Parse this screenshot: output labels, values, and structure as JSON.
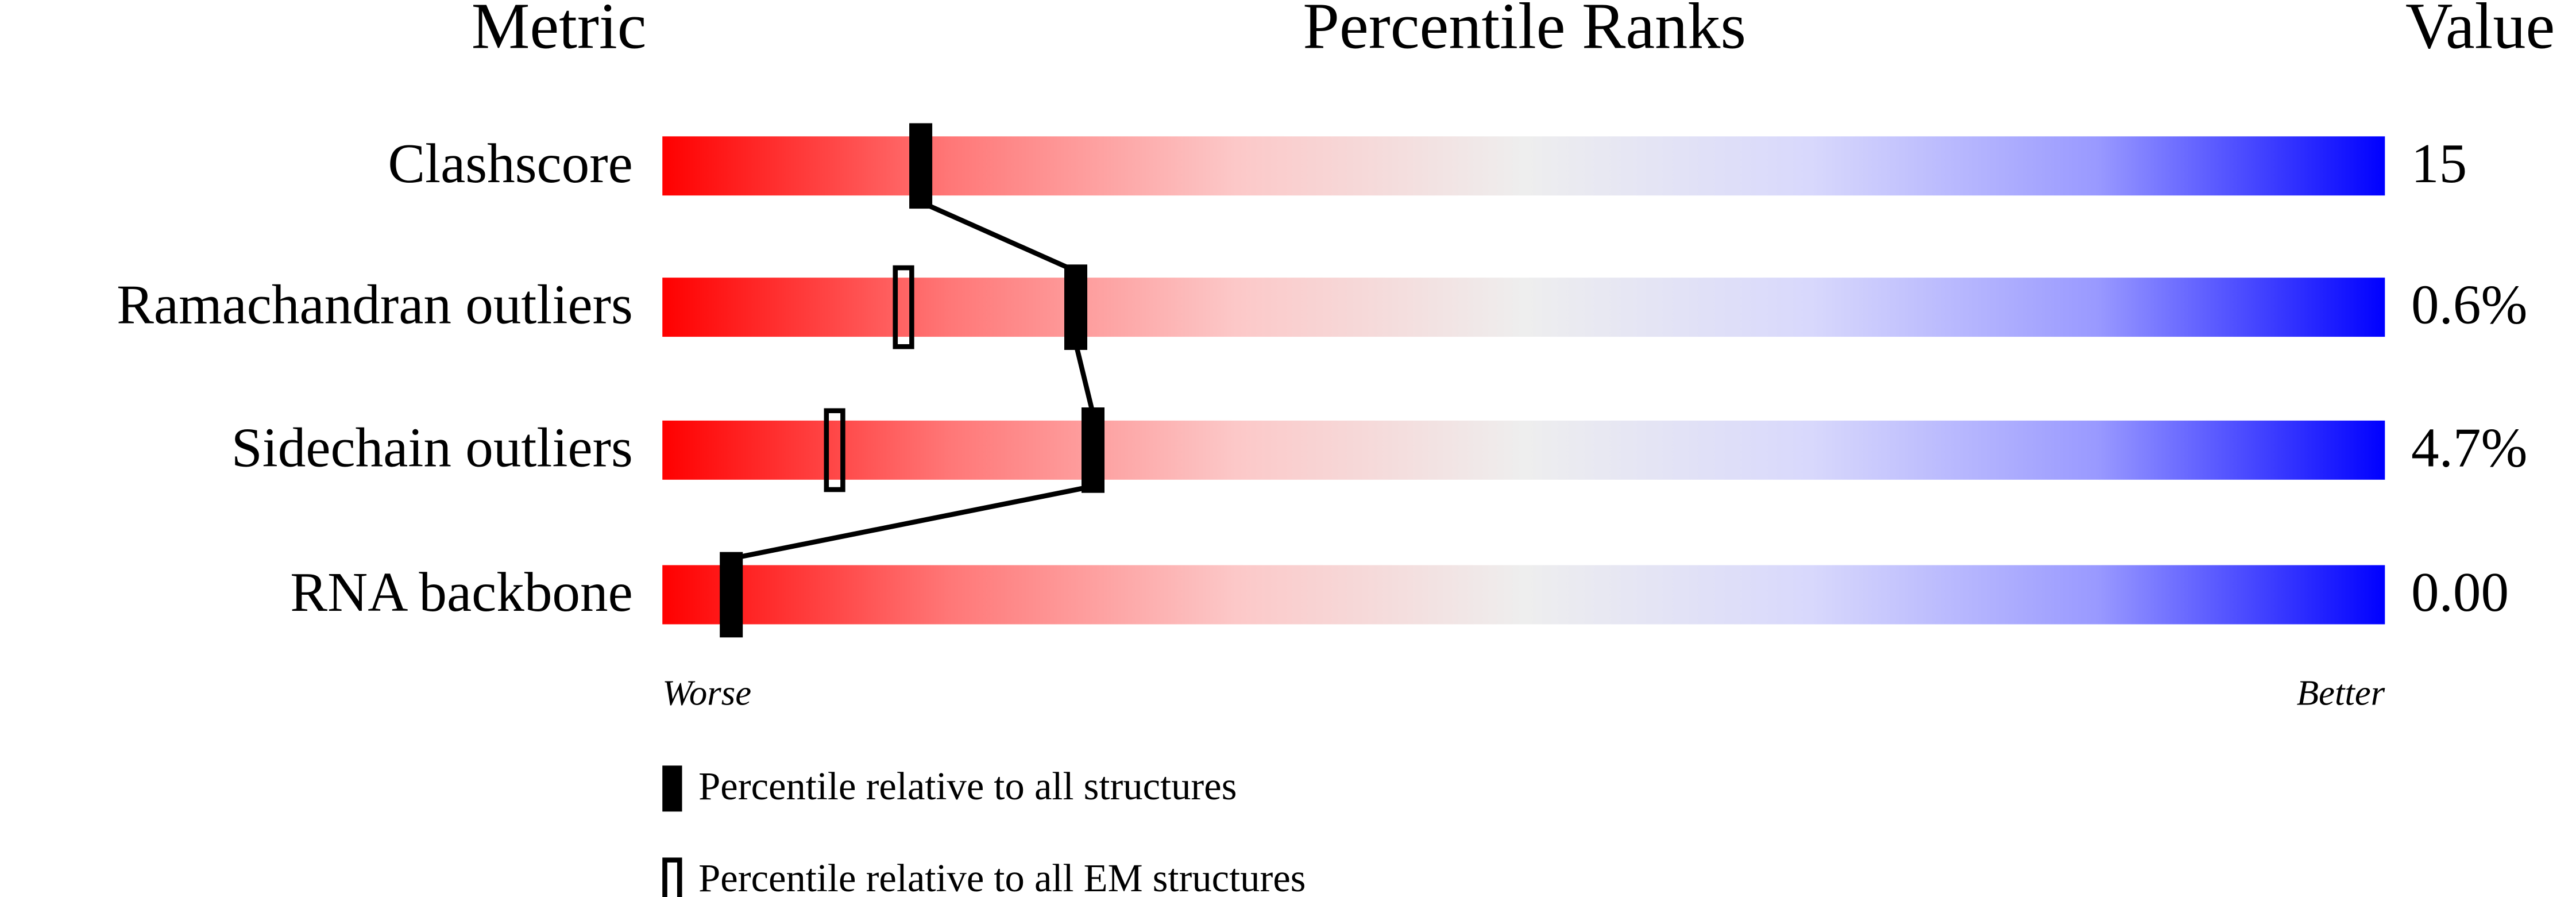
{
  "chart_data": {
    "type": "percentile-slider",
    "column_headers": [
      "Metric",
      "Percentile Ranks",
      "Value"
    ],
    "categories": [
      "Clashscore",
      "Ramachandran outliers",
      "Sidechain outliers",
      "RNA backbone"
    ],
    "metric_values": [
      "15",
      "0.6%",
      "4.7%",
      "0.00"
    ],
    "series": [
      {
        "name": "Percentile relative to all structures",
        "color": "#000000",
        "filled": true,
        "values": [
          15,
          24,
          25,
          4
        ]
      },
      {
        "name": "Percentile relative to all EM structures",
        "color": "#000000",
        "filled": false,
        "values": [
          null,
          14,
          10,
          4
        ]
      }
    ],
    "xlim": [
      0,
      100
    ],
    "axis_ends": [
      "Worse",
      "Better"
    ],
    "gradient": [
      "#ff0000",
      "#ff7777",
      "#fcc8c8",
      "#eeeeee",
      "#d8d8fc",
      "#9999ff",
      "#0000ff"
    ]
  }
}
